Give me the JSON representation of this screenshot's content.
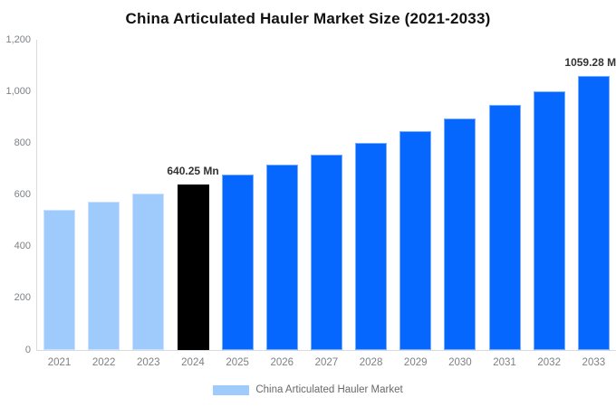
{
  "title": "China Articulated Hauler Market Size (2021-2033)",
  "chart_data": {
    "type": "bar",
    "title": "China Articulated Hauler Market Size (2021-2033)",
    "categories": [
      "2021",
      "2022",
      "2023",
      "2024",
      "2025",
      "2026",
      "2027",
      "2028",
      "2029",
      "2030",
      "2031",
      "2032",
      "2033"
    ],
    "values": [
      541.4,
      572.5,
      605.4,
      640.25,
      677.1,
      716.0,
      757.2,
      800.7,
      846.8,
      895.5,
      947.0,
      1001.4,
      1059.28
    ],
    "unit": "Mn",
    "xlabel": "",
    "ylabel": "",
    "ylim": [
      0,
      1200
    ],
    "ytick_interval": 200,
    "ytick_labels": [
      "0",
      "200",
      "400",
      "600",
      "800",
      "1,000",
      "1,200"
    ],
    "grid": false,
    "legend_position": "bottom",
    "bar_colors": [
      "#9ecbfc",
      "#9ecbfc",
      "#9ecbfc",
      "#000000",
      "#0667fe",
      "#0667fe",
      "#0667fe",
      "#0667fe",
      "#0667fe",
      "#0667fe",
      "#0667fe",
      "#0667fe",
      "#0667fe"
    ],
    "annotations": [
      {
        "category": "2024",
        "label": "640.25 Mn"
      },
      {
        "category": "2033",
        "label": "1059.28 Mn"
      }
    ]
  },
  "legend": {
    "items": [
      {
        "label": "China Articulated Hauler Market",
        "color": "#9ecbfc"
      }
    ]
  },
  "colors": {
    "historical_bar": "#9ecbfc",
    "base_year_bar": "#000000",
    "forecast_bar": "#0667fe",
    "axis_line": "#d6dbe0",
    "tick_text": "#7d8084",
    "title_text": "#111111",
    "data_label_text": "#333333",
    "background": "#ffffff"
  }
}
